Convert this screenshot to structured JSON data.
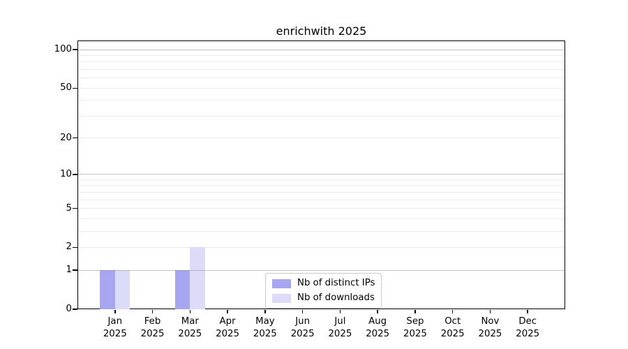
{
  "chart_data": {
    "type": "bar",
    "title": "enrichwith 2025",
    "categories": [
      "Jan",
      "Feb",
      "Mar",
      "Apr",
      "May",
      "Jun",
      "Jul",
      "Aug",
      "Sep",
      "Oct",
      "Nov",
      "Dec"
    ],
    "category_year": "2025",
    "series": [
      {
        "name": "Nb of distinct IPs",
        "color": "#a6a6f1",
        "values": [
          1,
          0,
          1,
          0,
          0,
          0,
          0,
          0,
          0,
          0,
          0,
          0
        ]
      },
      {
        "name": "Nb of downloads",
        "color": "#dcdcf8",
        "values": [
          1,
          0,
          2,
          0,
          0,
          0,
          0,
          0,
          0,
          0,
          0,
          0
        ]
      }
    ],
    "yscale": "log1p",
    "ylim": [
      0,
      118
    ],
    "yticks_labeled": [
      0,
      1,
      2,
      5,
      10,
      20,
      50,
      100
    ],
    "gridlines_major": [
      1,
      10,
      100
    ],
    "gridlines_minor": [
      2,
      3,
      4,
      5,
      6,
      7,
      8,
      9,
      20,
      30,
      40,
      50,
      60,
      70,
      80,
      90
    ],
    "grid": "horizontal",
    "legend": {
      "position": "lower center",
      "entries": [
        "Nb of distinct IPs",
        "Nb of downloads"
      ]
    },
    "colors": {
      "spine": "#000000",
      "grid_major": "#c6c6c6",
      "grid_minor": "#ebebeb",
      "text": "#000000",
      "background": "#ffffff"
    }
  }
}
